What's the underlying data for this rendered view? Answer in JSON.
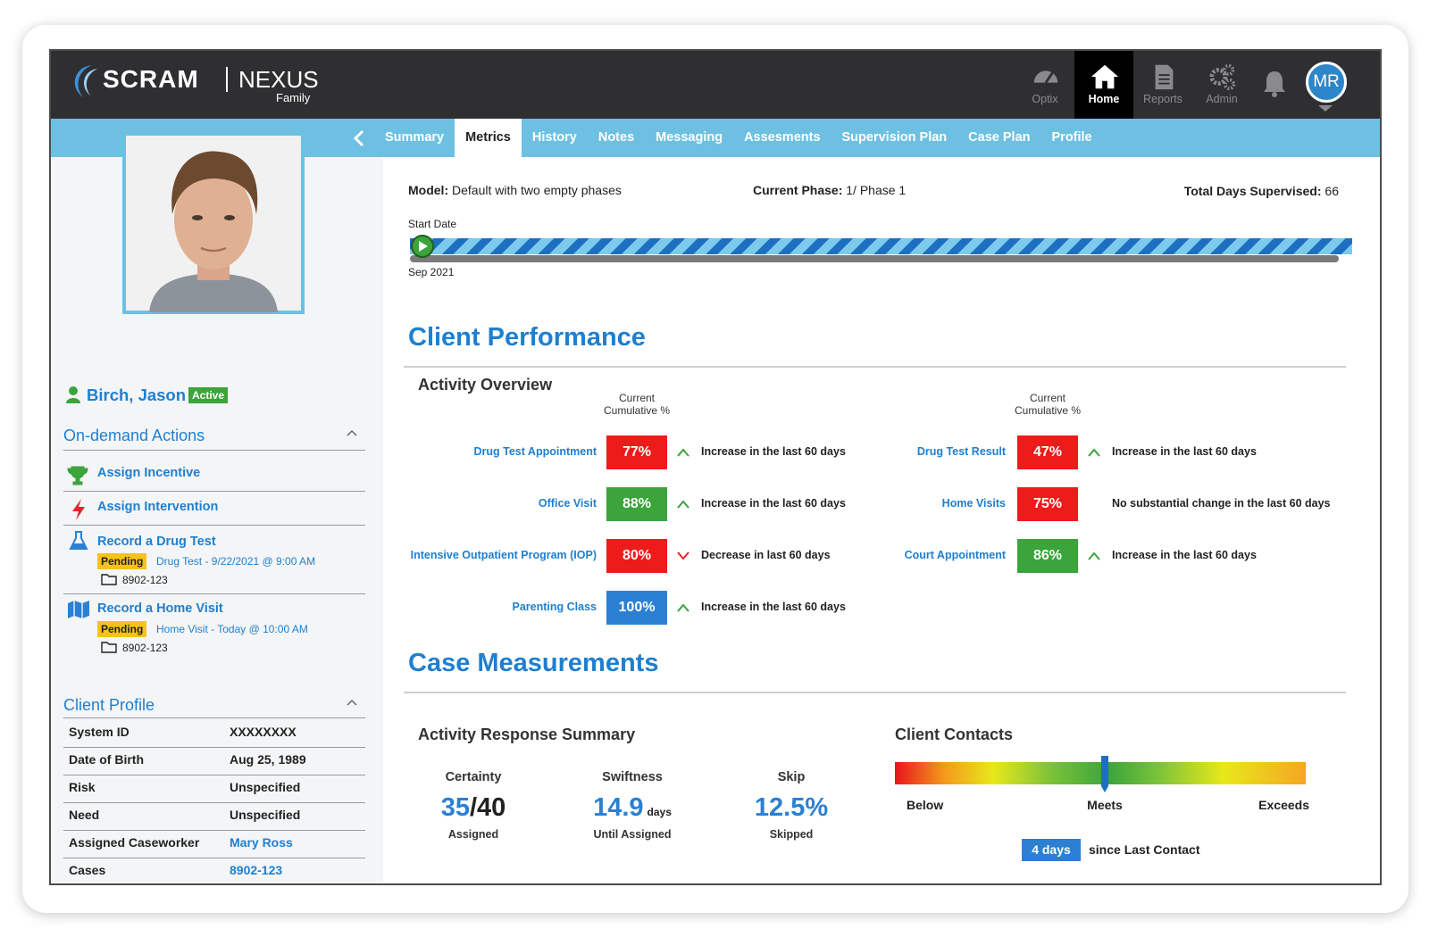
{
  "header": {
    "brand": "SCRAM",
    "product": "NEXUS",
    "subproduct": "Family",
    "nav": [
      {
        "label": "Optix"
      },
      {
        "label": "Home",
        "active": true
      },
      {
        "label": "Reports"
      },
      {
        "label": "Admin"
      }
    ],
    "avatar": "MR"
  },
  "tabs": [
    {
      "label": "Summary"
    },
    {
      "label": "Metrics",
      "active": true
    },
    {
      "label": "History"
    },
    {
      "label": "Notes"
    },
    {
      "label": "Messaging"
    },
    {
      "label": "Assesments"
    },
    {
      "label": "Supervision Plan"
    },
    {
      "label": "Case Plan"
    },
    {
      "label": "Profile"
    }
  ],
  "sidebar": {
    "client": {
      "name": "Birch, Jason",
      "status": "Active"
    },
    "actions": {
      "title": "On-demand Actions",
      "items": [
        {
          "label": "Assign Incentive"
        },
        {
          "label": "Assign Intervention"
        },
        {
          "label": "Record a Drug Test",
          "status": "Pending",
          "detail": "Drug Test - 9/22/2021 @ 9:00 AM",
          "case": "8902-123"
        },
        {
          "label": "Record a Home Visit",
          "status": "Pending",
          "detail": "Home Visit - Today @ 10:00 AM",
          "case": "8902-123"
        }
      ]
    },
    "profile": {
      "title": "Client Profile",
      "rows": [
        [
          "System ID",
          "XXXXXXXX"
        ],
        [
          "Date of Birth",
          "Aug 25, 1989"
        ],
        [
          "Risk",
          "Unspecified"
        ],
        [
          "Need",
          "Unspecified"
        ],
        [
          "Assigned Caseworker",
          "Mary Ross"
        ],
        [
          "Cases",
          "8902-123"
        ]
      ]
    }
  },
  "summary": {
    "model_label": "Model:",
    "model": "Default with two empty phases",
    "phase_label": "Current Phase:",
    "phase": "1/ Phase 1",
    "days_label": "Total Days Supervised:",
    "days": "66",
    "start_label": "Start Date",
    "start_date": "Sep 2021"
  },
  "performance": {
    "title": "Client Performance",
    "subtitle": "Activity Overview",
    "column_header": "Current Cumulative %",
    "columns": [
      [
        {
          "label": "Drug Test Appointment",
          "value": "77%",
          "color": "#ee1b1b",
          "trend": "up",
          "note": "Increase in the last 60 days"
        },
        {
          "label": "Office Visit",
          "value": "88%",
          "color": "#3ba43b",
          "trend": "up",
          "note": "Increase in the last 60 days"
        },
        {
          "label": "Intensive Outpatient Program (IOP)",
          "value": "80%",
          "color": "#ee1b1b",
          "trend": "down",
          "note": "Decrease in last 60 days"
        },
        {
          "label": "Parenting Class",
          "value": "100%",
          "color": "#2b80d3",
          "trend": "up",
          "note": "Increase in the last 60 days"
        }
      ],
      [
        {
          "label": "Drug Test Result",
          "value": "47%",
          "color": "#ee1b1b",
          "trend": "up",
          "note": "Increase in the last 60 days"
        },
        {
          "label": "Home Visits",
          "value": "75%",
          "color": "#ee1b1b",
          "trend": "none",
          "note": "No substantial change in the last 60 days"
        },
        {
          "label": "Court Appointment",
          "value": "86%",
          "color": "#3ba43b",
          "trend": "up",
          "note": "Increase in the last 60 days"
        }
      ]
    ]
  },
  "case": {
    "title": "Case Measurements",
    "response": {
      "title": "Activity Response Summary",
      "metrics": [
        {
          "label": "Certainty",
          "value": "35",
          "suffix": "/40",
          "caption": "Assigned"
        },
        {
          "label": "Swiftness",
          "value": "14.9",
          "suffix": "days",
          "caption": "Until Assigned"
        },
        {
          "label": "Skip",
          "value": "12.5%",
          "caption": "Skipped"
        }
      ]
    },
    "contacts": {
      "title": "Client Contacts",
      "scale": [
        "Below",
        "Meets",
        "Exceeds"
      ],
      "days": "4 days",
      "since": "since Last Contact"
    }
  }
}
